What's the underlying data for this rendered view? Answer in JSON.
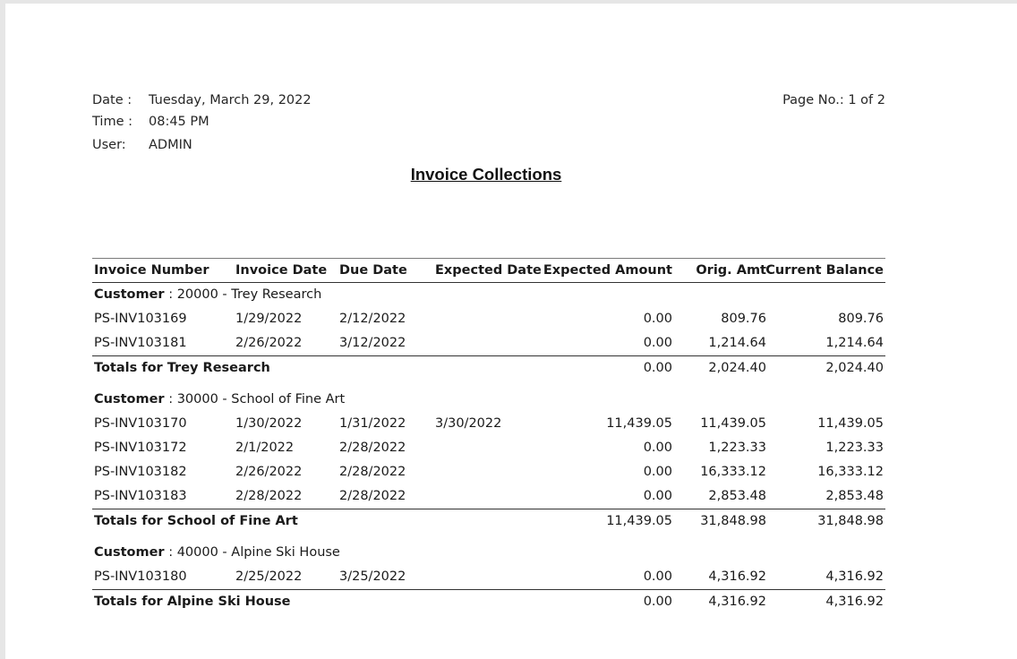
{
  "header": {
    "date_label": "Date :",
    "date_value": "Tuesday, March 29, 2022",
    "time_label": "Time :",
    "time_value": "08:45 PM",
    "user_label": "User:",
    "user_value": "ADMIN",
    "page_no": "Page No.: 1 of 2",
    "title": "Invoice Collections"
  },
  "columns": [
    "Invoice Number",
    "Invoice Date",
    "Due Date",
    "Expected Date",
    "Expected Amount",
    "Orig. Amt",
    "Current Balance"
  ],
  "customer_label": "Customer",
  "groups": [
    {
      "customer": " : 20000 - Trey Research",
      "rows": [
        {
          "invoice": "PS-INV103169",
          "invoice_date": "1/29/2022",
          "due_date": "2/12/2022",
          "expected_date": "",
          "expected_amount": "0.00",
          "orig_amt": "809.76",
          "current_balance": "809.76"
        },
        {
          "invoice": "PS-INV103181",
          "invoice_date": "2/26/2022",
          "due_date": "3/12/2022",
          "expected_date": "",
          "expected_amount": "0.00",
          "orig_amt": "1,214.64",
          "current_balance": "1,214.64"
        }
      ],
      "total_label": "Totals for Trey Research",
      "total_expected": "0.00",
      "total_orig": "2,024.40",
      "total_balance": "2,024.40"
    },
    {
      "customer": " : 30000 - School of Fine Art",
      "rows": [
        {
          "invoice": "PS-INV103170",
          "invoice_date": "1/30/2022",
          "due_date": "1/31/2022",
          "expected_date": "3/30/2022",
          "expected_amount": "11,439.05",
          "orig_amt": "11,439.05",
          "current_balance": "11,439.05"
        },
        {
          "invoice": "PS-INV103172",
          "invoice_date": "2/1/2022",
          "due_date": "2/28/2022",
          "expected_date": "",
          "expected_amount": "0.00",
          "orig_amt": "1,223.33",
          "current_balance": "1,223.33"
        },
        {
          "invoice": "PS-INV103182",
          "invoice_date": "2/26/2022",
          "due_date": "2/28/2022",
          "expected_date": "",
          "expected_amount": "0.00",
          "orig_amt": "16,333.12",
          "current_balance": "16,333.12"
        },
        {
          "invoice": "PS-INV103183",
          "invoice_date": "2/28/2022",
          "due_date": "2/28/2022",
          "expected_date": "",
          "expected_amount": "0.00",
          "orig_amt": "2,853.48",
          "current_balance": "2,853.48"
        }
      ],
      "total_label": "Totals for School of Fine Art",
      "total_expected": "11,439.05",
      "total_orig": "31,848.98",
      "total_balance": "31,848.98"
    },
    {
      "customer": " : 40000 - Alpine Ski House",
      "rows": [
        {
          "invoice": "PS-INV103180",
          "invoice_date": "2/25/2022",
          "due_date": "3/25/2022",
          "expected_date": "",
          "expected_amount": "0.00",
          "orig_amt": "4,316.92",
          "current_balance": "4,316.92"
        }
      ],
      "total_label": "Totals for Alpine Ski House",
      "total_expected": "0.00",
      "total_orig": "4,316.92",
      "total_balance": "4,316.92"
    }
  ]
}
